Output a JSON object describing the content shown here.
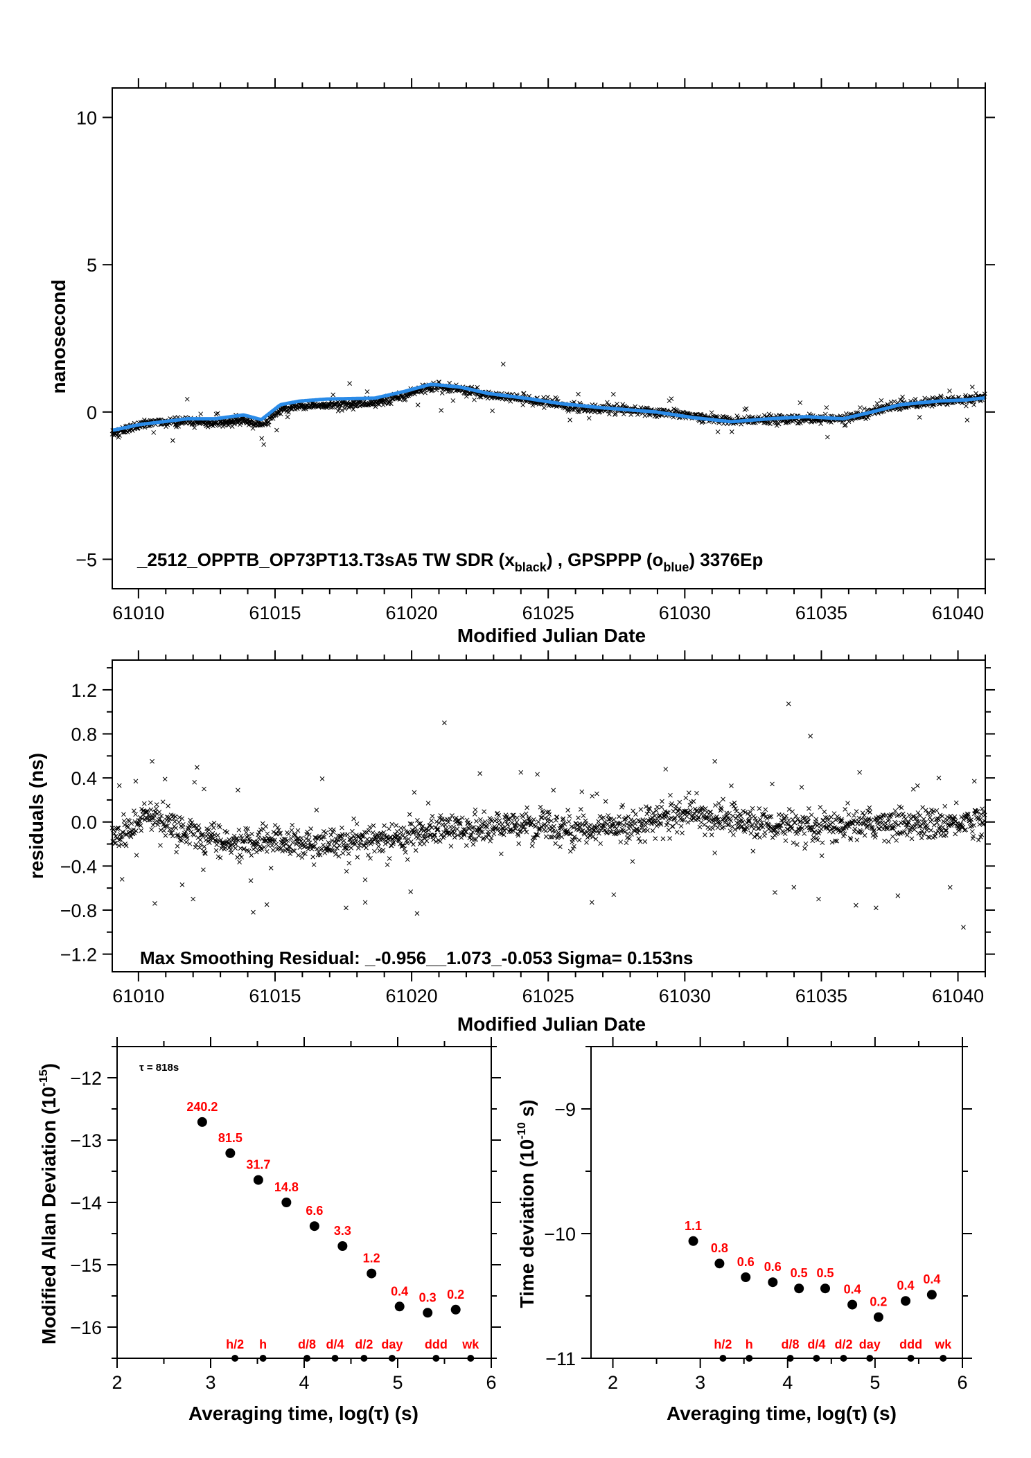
{
  "colors": {
    "timeseries_black": "#000000",
    "gpsppp_blue": "#2a8be8",
    "label_red": "#ff0000",
    "axis": "#000000"
  },
  "chart_data": [
    {
      "id": "timeseries",
      "type": "scatter",
      "title": "_2512_OPPTB_OP73PT13.T3sA5    TW SDR (x_black) ,  GPSPPP (o_blue)  3376Ep",
      "annotation_parts": {
        "prefix": "_2512_OPPTB_OP73PT13.T3sA5    TW SDR (x",
        "sub1": "black",
        "mid": ") ,  GPSPPP (o",
        "sub2": "blue",
        "suffix": ")  3376Ep"
      },
      "xlabel": "Modified Julian Date",
      "ylabel": "nanosecond",
      "xlim": [
        61009.04,
        61041.0
      ],
      "ylim": [
        -6,
        11
      ],
      "xticks": [
        61010,
        61015,
        61020,
        61025,
        61030,
        61035,
        61040
      ],
      "xtick_labels": [
        "61010",
        "61015",
        "61020",
        "61025",
        "61030",
        "61035",
        "61040"
      ],
      "yticks": [
        -5,
        0,
        5,
        10
      ],
      "ytick_labels": [
        "−5",
        "0",
        "5",
        "10"
      ],
      "epochs": 3376,
      "series": [
        {
          "name": "GPSPPP (o_blue) smoothed",
          "marker": "line",
          "color": "#2a8be8",
          "x": [
            61009.11,
            61010.08,
            61011.8,
            61012.8,
            61013.85,
            61014.5,
            61015.2,
            61015.9,
            61016.9,
            61018.65,
            61019.7,
            61020.7,
            61021.75,
            61022.8,
            61024.15,
            61025.5,
            61026.9,
            61028.96,
            61030.3,
            61031.7,
            61033.1,
            61034.46,
            61035.8,
            61036.85,
            61037.9,
            61039.26,
            61040.3,
            61041.0
          ],
          "y": [
            -0.61,
            -0.42,
            -0.23,
            -0.23,
            -0.1,
            -0.26,
            0.25,
            0.37,
            0.44,
            0.47,
            0.69,
            0.94,
            0.85,
            0.63,
            0.47,
            0.28,
            0.15,
            0.0,
            -0.19,
            -0.33,
            -0.23,
            -0.16,
            -0.23,
            0.0,
            0.25,
            0.37,
            0.41,
            0.48
          ]
        },
        {
          "name": "TW SDR (x_black)",
          "marker": "x",
          "color": "#000000",
          "description": "3376 epochs scattered about the blue curve plus the residual trend; sigma 0.153 ns"
        }
      ]
    },
    {
      "id": "residuals",
      "type": "scatter",
      "xlabel": "Modified Julian Date",
      "ylabel": "residuals (ns)",
      "xlim": [
        61009.04,
        61041.0
      ],
      "ylim": [
        -1.36,
        1.47
      ],
      "xticks": [
        61010,
        61015,
        61020,
        61025,
        61030,
        61035,
        61040
      ],
      "xtick_labels": [
        "61010",
        "61015",
        "61020",
        "61025",
        "61030",
        "61035",
        "61040"
      ],
      "yticks": [
        -1.2,
        -0.8,
        -0.4,
        0.0,
        0.4,
        0.8,
        1.2
      ],
      "ytick_labels": [
        "−1.2",
        "−0.8",
        "−0.4",
        "0.0",
        "0.4",
        "0.8",
        "1.2"
      ],
      "annotation": "Max Smoothing Residual: _-0.956__1.073_-0.053  Sigma= 0.153ns",
      "max_residual_min": -0.956,
      "max_residual_max": 1.073,
      "mean_residual": -0.053,
      "sigma_ns": 0.153,
      "trend": {
        "x": [
          61009.04,
          61010.5,
          61011.5,
          61012.5,
          61013.5,
          61015.0,
          61016.5,
          61018.0,
          61019.5,
          61021.0,
          61022.5,
          61024.0,
          61026.0,
          61028.0,
          61030.0,
          61031.5,
          61033.0,
          61034.5,
          61036.0,
          61037.5,
          61039.0,
          61041.0
        ],
        "y": [
          -0.12,
          0.03,
          -0.08,
          -0.12,
          -0.2,
          -0.17,
          -0.21,
          -0.18,
          -0.15,
          -0.05,
          -0.06,
          -0.02,
          -0.08,
          -0.02,
          0.06,
          0.03,
          -0.02,
          -0.08,
          -0.02,
          0.0,
          -0.02,
          0.02
        ]
      },
      "outliers": [
        {
          "x": 61010.5,
          "y": 0.55
        },
        {
          "x": 61009.3,
          "y": 0.33
        },
        {
          "x": 61009.9,
          "y": 0.37
        },
        {
          "x": 61009.4,
          "y": -0.52
        },
        {
          "x": 61010.6,
          "y": -0.74
        },
        {
          "x": 61011.6,
          "y": -0.57
        },
        {
          "x": 61012.0,
          "y": -0.7
        },
        {
          "x": 61012.4,
          "y": 0.3
        },
        {
          "x": 61014.2,
          "y": -0.82
        },
        {
          "x": 61014.7,
          "y": -0.75
        },
        {
          "x": 61017.6,
          "y": -0.78
        },
        {
          "x": 61018.3,
          "y": -0.73
        },
        {
          "x": 61020.2,
          "y": -0.83
        },
        {
          "x": 61021.2,
          "y": 0.9
        },
        {
          "x": 61022.5,
          "y": 0.44
        },
        {
          "x": 61024.0,
          "y": 0.45
        },
        {
          "x": 61026.6,
          "y": -0.73
        },
        {
          "x": 61027.4,
          "y": -0.66
        },
        {
          "x": 61029.3,
          "y": 0.48
        },
        {
          "x": 61031.1,
          "y": 0.55
        },
        {
          "x": 61033.3,
          "y": -0.64
        },
        {
          "x": 61033.8,
          "y": 1.073
        },
        {
          "x": 61034.6,
          "y": 0.78
        },
        {
          "x": 61034.9,
          "y": -0.7
        },
        {
          "x": 61036.4,
          "y": 0.45
        },
        {
          "x": 61037.0,
          "y": -0.78
        },
        {
          "x": 61037.8,
          "y": -0.67
        },
        {
          "x": 61040.2,
          "y": -0.956
        },
        {
          "x": 61040.6,
          "y": 0.37
        },
        {
          "x": 61039.3,
          "y": 0.4
        }
      ]
    },
    {
      "id": "mdev",
      "type": "scatter",
      "xlabel": "Averaging time, log(τ) (s)",
      "ylabel": "Modified Allan Deviation",
      "ylabel_unit_base": "(10",
      "ylabel_unit_exp": "-15",
      "ylabel_unit_end": ")",
      "annotation": "τ = 818s",
      "xlim": [
        2,
        6
      ],
      "ylim": [
        -16.5,
        -11.5
      ],
      "xticks": [
        2,
        3,
        4,
        5,
        6
      ],
      "xtick_labels": [
        "2",
        "3",
        "4",
        "5",
        "6"
      ],
      "yticks": [
        -16,
        -15,
        -14,
        -13,
        -12
      ],
      "ytick_labels": [
        "−16",
        "−15",
        "−14",
        "−13",
        "−12"
      ],
      "x": [
        2.91,
        3.21,
        3.51,
        3.81,
        4.11,
        4.41,
        4.72,
        5.02,
        5.32,
        5.62
      ],
      "y": [
        -12.71,
        -13.21,
        -13.64,
        -14.0,
        -14.38,
        -14.7,
        -15.14,
        -15.67,
        -15.77,
        -15.72
      ],
      "point_labels": [
        "240.2",
        "81.5",
        "31.7",
        "14.8",
        "6.6",
        "3.3",
        "1.2",
        "0.4",
        "0.3",
        "0.2"
      ],
      "interval_markers": {
        "x": [
          3.26,
          3.56,
          4.03,
          4.33,
          4.64,
          4.94,
          5.41,
          5.78
        ],
        "labels": [
          "h/2",
          "h",
          "d/8",
          "d/4",
          "d/2",
          "day",
          "ddd",
          "wk"
        ]
      }
    },
    {
      "id": "tdev",
      "type": "scatter",
      "xlabel": "Averaging time, log(τ) (s)",
      "ylabel": "Time deviation",
      "ylabel_unit_base": "(10",
      "ylabel_unit_exp": "-10",
      "ylabel_unit_end": " s)",
      "xlim": [
        1.75,
        6
      ],
      "ylim": [
        -11,
        -8.5
      ],
      "xticks": [
        2,
        3,
        4,
        5,
        6
      ],
      "xtick_labels": [
        "2",
        "3",
        "4",
        "5",
        "6"
      ],
      "yticks": [
        -11,
        -10,
        -9
      ],
      "ytick_labels": [
        "−11",
        "−10",
        "−9"
      ],
      "x": [
        2.92,
        3.22,
        3.52,
        3.83,
        4.13,
        4.43,
        4.74,
        5.04,
        5.35,
        5.65
      ],
      "y": [
        -10.06,
        -10.24,
        -10.35,
        -10.39,
        -10.44,
        -10.44,
        -10.57,
        -10.67,
        -10.54,
        -10.49
      ],
      "point_labels": [
        "1.1",
        "0.8",
        "0.6",
        "0.6",
        "0.5",
        "0.5",
        "0.4",
        "0.2",
        "0.4",
        "0.4"
      ],
      "interval_markers": {
        "x": [
          3.26,
          3.56,
          4.03,
          4.33,
          4.64,
          4.94,
          5.41,
          5.78
        ],
        "labels": [
          "h/2",
          "h",
          "d/8",
          "d/4",
          "d/2",
          "day",
          "ddd",
          "wk"
        ]
      }
    }
  ]
}
